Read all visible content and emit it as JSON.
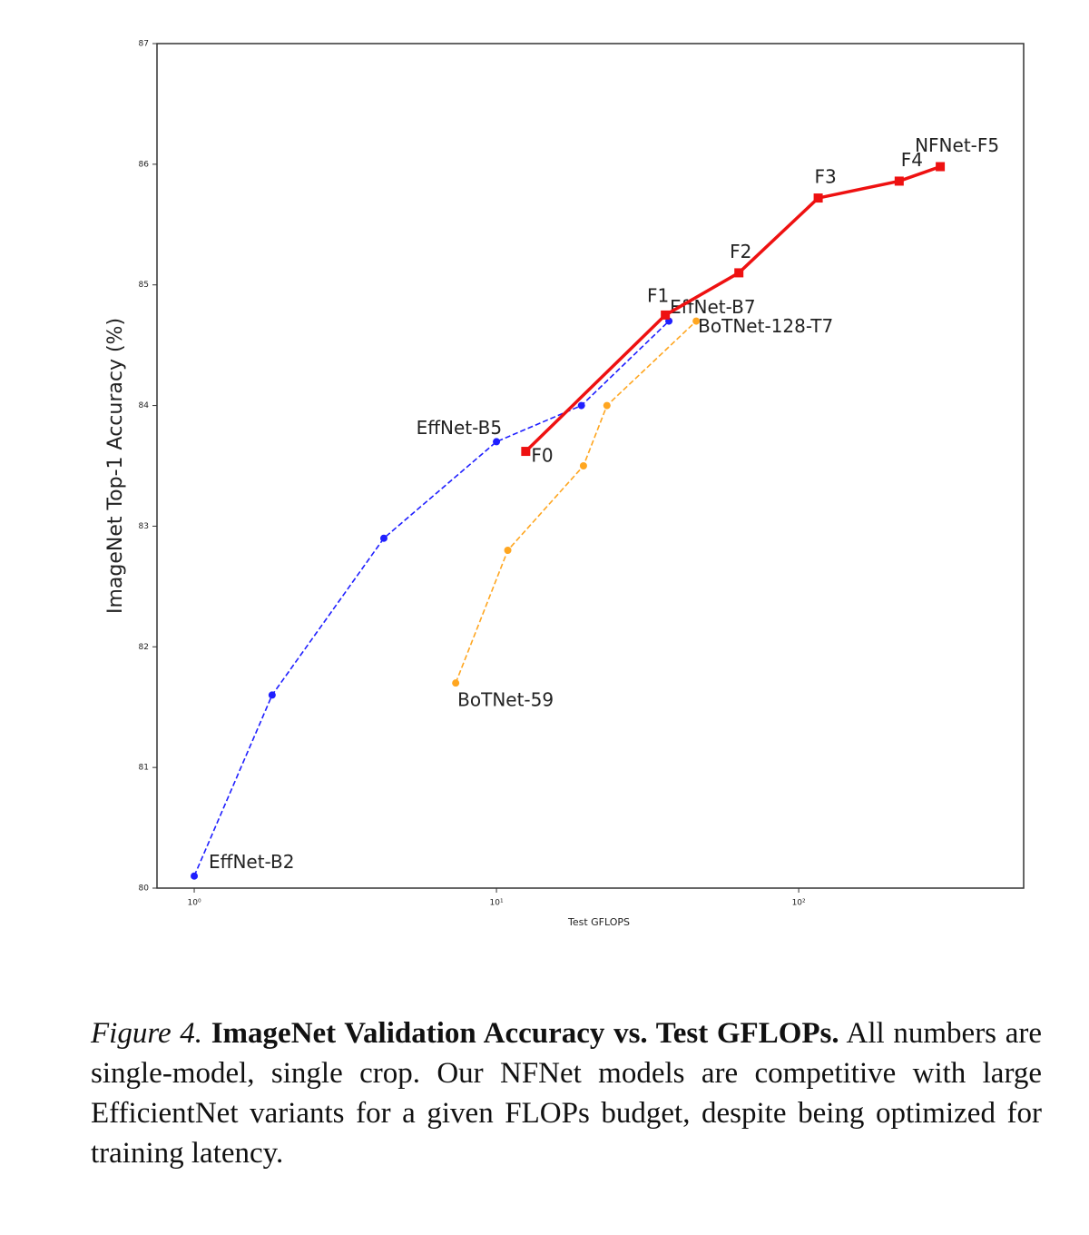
{
  "chart_data": {
    "type": "line",
    "xlabel": "Test GFLOPS",
    "ylabel": "ImageNet Top-1 Accuracy (%)",
    "xscale": "log",
    "xlim": [
      0.753,
      555
    ],
    "ylim": [
      80,
      87
    ],
    "xticks": [
      {
        "value": 1,
        "label": "10⁰"
      },
      {
        "value": 10,
        "label": "10¹"
      },
      {
        "value": 100,
        "label": "10²"
      }
    ],
    "yticks": [
      80,
      81,
      82,
      83,
      84,
      85,
      86,
      87
    ],
    "series": [
      {
        "color": "#1f1fff",
        "dash": true,
        "marker": "circle",
        "x": [
          1.0,
          1.81,
          4.24,
          10.0,
          19.1,
          37.2
        ],
        "values": [
          80.1,
          81.6,
          82.9,
          83.7,
          84.0,
          84.7
        ],
        "labels": [
          "EffNet-B2",
          null,
          null,
          "EffNet-B5",
          null,
          "EffNet-B7"
        ]
      },
      {
        "color": "#ffa620",
        "dash": true,
        "marker": "circle",
        "x": [
          7.33,
          10.9,
          19.4,
          23.2,
          45.8
        ],
        "values": [
          81.7,
          82.8,
          83.5,
          84.0,
          84.7
        ],
        "labels": [
          "BoTNet-59",
          null,
          null,
          null,
          "BoTNet-128-T7"
        ]
      },
      {
        "color": "#ee1111",
        "dash": false,
        "marker": "square",
        "x": [
          12.5,
          36.2,
          63.4,
          116,
          215,
          294
        ],
        "values": [
          83.62,
          84.75,
          85.1,
          85.72,
          85.86,
          85.98
        ],
        "labels": [
          "F0",
          "F1",
          "F2",
          "F3",
          "F4",
          "NFNet-F5"
        ]
      }
    ]
  },
  "caption": {
    "label": "Figure 4.",
    "title": "ImageNet Validation Accuracy vs. Test GFLOPs.",
    "text": "All numbers are single-model, single crop. Our NFNet models are competitive with large EfficientNet variants for a given FLOPs budget, despite being optimized for training latency."
  }
}
